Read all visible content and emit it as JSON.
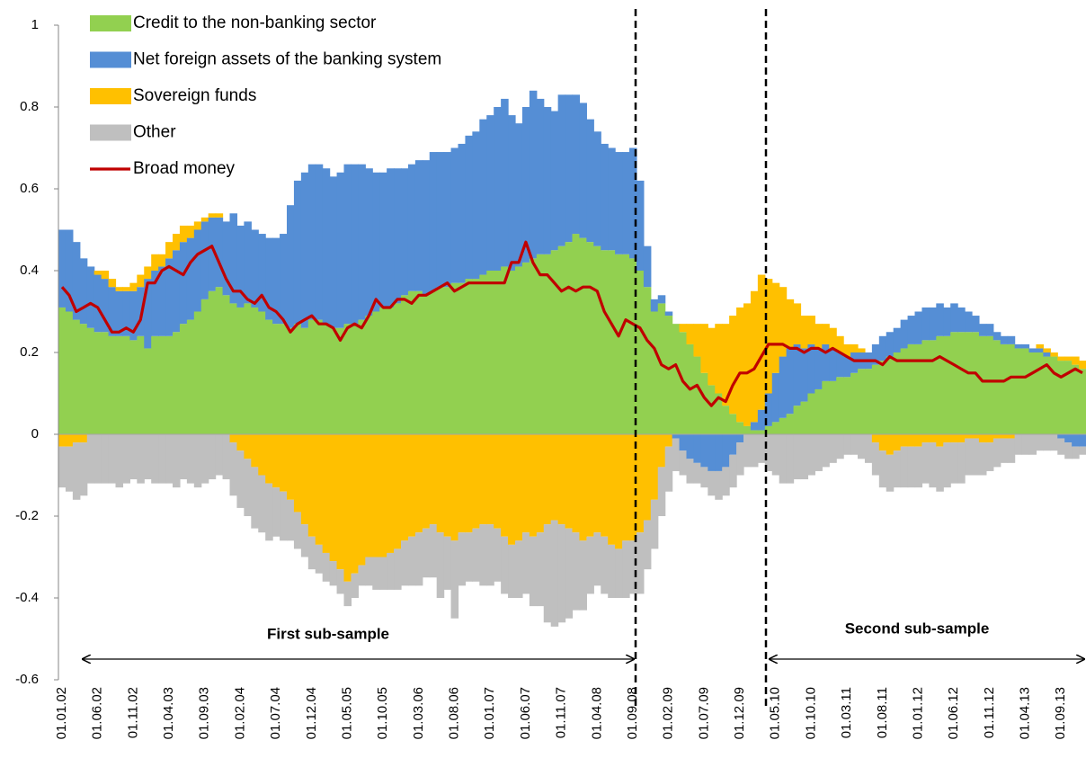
{
  "chart_data": {
    "type": "bar",
    "stacked": true,
    "legend": "upper left",
    "ylim": [
      -0.6,
      1
    ],
    "yticks": [
      -0.6,
      -0.4,
      -0.2,
      0,
      0.2,
      0.4,
      0.6,
      0.8,
      1
    ],
    "annotations": [
      "First sub-sample",
      "Second sub-sample"
    ],
    "categories": [
      "01.01.02",
      null,
      null,
      null,
      null,
      "01.06.02",
      null,
      null,
      null,
      null,
      "01.11.02",
      null,
      null,
      null,
      null,
      "01.04.03",
      null,
      null,
      null,
      null,
      "01.09.03",
      null,
      null,
      null,
      null,
      "01.02.04",
      null,
      null,
      null,
      null,
      "01.07.04",
      null,
      null,
      null,
      null,
      "01.12.04",
      null,
      null,
      null,
      null,
      "01.05.05",
      null,
      null,
      null,
      null,
      "01.10.05",
      null,
      null,
      null,
      null,
      "01.03.06",
      null,
      null,
      null,
      null,
      "01.08.06",
      null,
      null,
      null,
      null,
      "01.01.07",
      null,
      null,
      null,
      null,
      "01.06.07",
      null,
      null,
      null,
      null,
      "01.11.07",
      null,
      null,
      null,
      null,
      "01.04.08",
      null,
      null,
      null,
      null,
      "01.09.08",
      null,
      null,
      null,
      null,
      "01.02.09",
      null,
      null,
      null,
      null,
      "01.07.09",
      null,
      null,
      null,
      null,
      "01.12.09",
      null,
      null,
      null,
      null,
      "01.05.10",
      null,
      null,
      null,
      null,
      "01.10.10",
      null,
      null,
      null,
      null,
      "01.03.11",
      null,
      null,
      null,
      null,
      "01.08.11",
      null,
      null,
      null,
      null,
      "01.01.12",
      null,
      null,
      null,
      null,
      "01.06.12",
      null,
      null,
      null,
      null,
      "01.11.12",
      null,
      null,
      null,
      null,
      "01.04.13",
      null,
      null,
      null,
      null,
      "01.09.13",
      null,
      null,
      null
    ],
    "series": [
      {
        "name": "Credit to the non-banking sector",
        "color": "#92d050",
        "values": [
          0.31,
          0.3,
          0.28,
          0.27,
          0.26,
          0.25,
          0.25,
          0.24,
          0.24,
          0.24,
          0.23,
          0.24,
          0.21,
          0.24,
          0.24,
          0.24,
          0.25,
          0.27,
          0.28,
          0.3,
          0.33,
          0.35,
          0.36,
          0.34,
          0.32,
          0.31,
          0.32,
          0.31,
          0.3,
          0.28,
          0.27,
          0.27,
          0.26,
          0.27,
          0.26,
          0.28,
          0.28,
          0.27,
          0.26,
          0.26,
          0.27,
          0.27,
          0.28,
          0.29,
          0.3,
          0.31,
          0.31,
          0.32,
          0.34,
          0.35,
          0.35,
          0.34,
          0.35,
          0.36,
          0.36,
          0.37,
          0.37,
          0.38,
          0.38,
          0.39,
          0.4,
          0.4,
          0.41,
          0.4,
          0.41,
          0.42,
          0.43,
          0.44,
          0.44,
          0.45,
          0.46,
          0.47,
          0.49,
          0.48,
          0.47,
          0.46,
          0.45,
          0.45,
          0.44,
          0.44,
          0.43,
          0.4,
          0.36,
          0.3,
          0.32,
          0.29,
          0.27,
          0.25,
          0.22,
          0.19,
          0.15,
          0.12,
          0.1,
          0.07,
          0.05,
          0.03,
          0.02,
          0.01,
          0.01,
          0.02,
          0.03,
          0.04,
          0.05,
          0.07,
          0.08,
          0.1,
          0.11,
          0.13,
          0.13,
          0.14,
          0.14,
          0.15,
          0.16,
          0.16,
          0.17,
          0.18,
          0.19,
          0.2,
          0.21,
          0.22,
          0.22,
          0.23,
          0.23,
          0.24,
          0.24,
          0.25,
          0.25,
          0.25,
          0.25,
          0.24,
          0.24,
          0.23,
          0.22,
          0.22,
          0.21,
          0.21,
          0.2,
          0.2,
          0.19,
          0.19,
          0.18,
          0.18,
          0.17,
          0.16
        ]
      },
      {
        "name": "Net foreign assets of the banking system",
        "color": "#558ed5",
        "values": [
          0.19,
          0.2,
          0.19,
          0.16,
          0.15,
          0.14,
          0.13,
          0.12,
          0.11,
          0.11,
          0.12,
          0.12,
          0.17,
          0.16,
          0.17,
          0.19,
          0.2,
          0.2,
          0.2,
          0.2,
          0.19,
          0.18,
          0.17,
          0.18,
          0.22,
          0.2,
          0.2,
          0.19,
          0.19,
          0.2,
          0.21,
          0.22,
          0.3,
          0.35,
          0.38,
          0.38,
          0.38,
          0.38,
          0.37,
          0.38,
          0.39,
          0.39,
          0.38,
          0.36,
          0.34,
          0.33,
          0.34,
          0.33,
          0.31,
          0.31,
          0.32,
          0.33,
          0.34,
          0.33,
          0.33,
          0.33,
          0.34,
          0.35,
          0.36,
          0.38,
          0.38,
          0.4,
          0.41,
          0.38,
          0.35,
          0.38,
          0.41,
          0.38,
          0.36,
          0.34,
          0.37,
          0.36,
          0.34,
          0.33,
          0.3,
          0.28,
          0.26,
          0.25,
          0.25,
          0.25,
          0.27,
          0.22,
          0.1,
          0.03,
          0.02,
          0.01,
          -0.01,
          -0.04,
          -0.06,
          -0.07,
          -0.08,
          -0.09,
          -0.09,
          -0.08,
          -0.05,
          -0.02,
          0.0,
          0.02,
          0.05,
          0.08,
          0.12,
          0.15,
          0.16,
          0.15,
          0.13,
          0.12,
          0.1,
          0.09,
          0.08,
          0.06,
          0.05,
          0.05,
          0.04,
          0.04,
          0.05,
          0.06,
          0.06,
          0.06,
          0.07,
          0.07,
          0.08,
          0.08,
          0.08,
          0.08,
          0.07,
          0.07,
          0.06,
          0.05,
          0.04,
          0.03,
          0.03,
          0.02,
          0.02,
          0.02,
          0.01,
          0.01,
          0.01,
          0.01,
          0.01,
          0.0,
          -0.01,
          -0.02,
          -0.03,
          -0.03
        ]
      },
      {
        "name": "Sovereign funds",
        "color": "#ffc000",
        "values": [
          -0.03,
          -0.03,
          -0.02,
          -0.02,
          0.0,
          0.01,
          0.02,
          0.02,
          0.01,
          0.01,
          0.02,
          0.03,
          0.03,
          0.04,
          0.03,
          0.04,
          0.04,
          0.04,
          0.03,
          0.02,
          0.01,
          0.01,
          0.01,
          0.0,
          -0.02,
          -0.04,
          -0.06,
          -0.08,
          -0.1,
          -0.12,
          -0.13,
          -0.14,
          -0.16,
          -0.19,
          -0.22,
          -0.25,
          -0.27,
          -0.29,
          -0.31,
          -0.33,
          -0.36,
          -0.34,
          -0.32,
          -0.3,
          -0.3,
          -0.3,
          -0.29,
          -0.28,
          -0.26,
          -0.25,
          -0.24,
          -0.23,
          -0.22,
          -0.24,
          -0.25,
          -0.26,
          -0.24,
          -0.24,
          -0.23,
          -0.22,
          -0.22,
          -0.23,
          -0.25,
          -0.27,
          -0.26,
          -0.24,
          -0.25,
          -0.24,
          -0.22,
          -0.21,
          -0.22,
          -0.23,
          -0.24,
          -0.26,
          -0.25,
          -0.24,
          -0.25,
          -0.27,
          -0.28,
          -0.26,
          -0.26,
          -0.24,
          -0.21,
          -0.16,
          -0.08,
          -0.03,
          0.0,
          0.02,
          0.05,
          0.08,
          0.12,
          0.14,
          0.17,
          0.2,
          0.24,
          0.28,
          0.3,
          0.32,
          0.33,
          0.28,
          0.22,
          0.17,
          0.12,
          0.1,
          0.08,
          0.07,
          0.06,
          0.05,
          0.05,
          0.04,
          0.03,
          0.02,
          0.01,
          0.0,
          -0.02,
          -0.04,
          -0.05,
          -0.04,
          -0.03,
          -0.03,
          -0.03,
          -0.02,
          -0.02,
          -0.03,
          -0.02,
          -0.02,
          -0.02,
          -0.01,
          -0.01,
          -0.02,
          -0.02,
          -0.01,
          -0.01,
          -0.01,
          0.0,
          0.0,
          0.0,
          0.01,
          0.01,
          0.01,
          0.01,
          0.01,
          0.02,
          0.02
        ]
      },
      {
        "name": "Other",
        "color": "#bfbfbf",
        "values": [
          -0.1,
          -0.11,
          -0.14,
          -0.13,
          -0.12,
          -0.12,
          -0.12,
          -0.12,
          -0.13,
          -0.12,
          -0.11,
          -0.12,
          -0.11,
          -0.12,
          -0.12,
          -0.12,
          -0.13,
          -0.11,
          -0.12,
          -0.13,
          -0.12,
          -0.11,
          -0.1,
          -0.11,
          -0.13,
          -0.14,
          -0.14,
          -0.15,
          -0.14,
          -0.14,
          -0.12,
          -0.12,
          -0.1,
          -0.09,
          -0.08,
          -0.08,
          -0.07,
          -0.07,
          -0.06,
          -0.06,
          -0.06,
          -0.06,
          -0.05,
          -0.07,
          -0.08,
          -0.08,
          -0.09,
          -0.1,
          -0.11,
          -0.12,
          -0.13,
          -0.12,
          -0.13,
          -0.16,
          -0.13,
          -0.19,
          -0.13,
          -0.12,
          -0.13,
          -0.15,
          -0.15,
          -0.13,
          -0.14,
          -0.13,
          -0.14,
          -0.15,
          -0.17,
          -0.18,
          -0.24,
          -0.26,
          -0.24,
          -0.22,
          -0.19,
          -0.17,
          -0.14,
          -0.13,
          -0.14,
          -0.13,
          -0.12,
          -0.14,
          -0.13,
          -0.15,
          -0.12,
          -0.12,
          -0.12,
          -0.11,
          -0.08,
          -0.06,
          -0.06,
          -0.05,
          -0.05,
          -0.06,
          -0.07,
          -0.07,
          -0.08,
          -0.08,
          -0.08,
          -0.08,
          -0.07,
          -0.09,
          -0.1,
          -0.12,
          -0.12,
          -0.11,
          -0.11,
          -0.1,
          -0.09,
          -0.08,
          -0.07,
          -0.06,
          -0.05,
          -0.05,
          -0.06,
          -0.07,
          -0.08,
          -0.09,
          -0.09,
          -0.09,
          -0.1,
          -0.1,
          -0.1,
          -0.1,
          -0.11,
          -0.11,
          -0.11,
          -0.1,
          -0.1,
          -0.09,
          -0.09,
          -0.08,
          -0.07,
          -0.07,
          -0.06,
          -0.06,
          -0.05,
          -0.05,
          -0.05,
          -0.04,
          -0.04,
          -0.04,
          -0.04,
          -0.04,
          -0.03,
          -0.02
        ]
      },
      {
        "name": "Broad money",
        "color": "#c00000",
        "type": "line",
        "values": [
          0.36,
          0.34,
          0.3,
          0.31,
          0.32,
          0.31,
          0.28,
          0.25,
          0.25,
          0.26,
          0.25,
          0.28,
          0.37,
          0.37,
          0.4,
          0.41,
          0.4,
          0.39,
          0.42,
          0.44,
          0.45,
          0.46,
          0.42,
          0.38,
          0.35,
          0.35,
          0.33,
          0.32,
          0.34,
          0.31,
          0.3,
          0.28,
          0.25,
          0.27,
          0.28,
          0.29,
          0.27,
          0.27,
          0.26,
          0.23,
          0.26,
          0.27,
          0.26,
          0.29,
          0.33,
          0.31,
          0.31,
          0.33,
          0.33,
          0.32,
          0.34,
          0.34,
          0.35,
          0.36,
          0.37,
          0.35,
          0.36,
          0.37,
          0.37,
          0.37,
          0.37,
          0.37,
          0.37,
          0.42,
          0.42,
          0.47,
          0.42,
          0.39,
          0.39,
          0.37,
          0.35,
          0.36,
          0.35,
          0.36,
          0.36,
          0.35,
          0.3,
          0.27,
          0.24,
          0.28,
          0.27,
          0.26,
          0.23,
          0.21,
          0.17,
          0.16,
          0.17,
          0.13,
          0.11,
          0.12,
          0.09,
          0.07,
          0.09,
          0.08,
          0.12,
          0.15,
          0.15,
          0.16,
          0.19,
          0.22,
          0.22,
          0.22,
          0.21,
          0.21,
          0.2,
          0.21,
          0.21,
          0.2,
          0.21,
          0.2,
          0.19,
          0.18,
          0.18,
          0.18,
          0.18,
          0.17,
          0.19,
          0.18,
          0.18,
          0.18,
          0.18,
          0.18,
          0.18,
          0.19,
          0.18,
          0.17,
          0.16,
          0.15,
          0.15,
          0.13,
          0.13,
          0.13,
          0.13,
          0.14,
          0.14,
          0.14,
          0.15,
          0.16,
          0.17,
          0.15,
          0.14,
          0.15,
          0.16,
          0.15
        ]
      }
    ]
  }
}
